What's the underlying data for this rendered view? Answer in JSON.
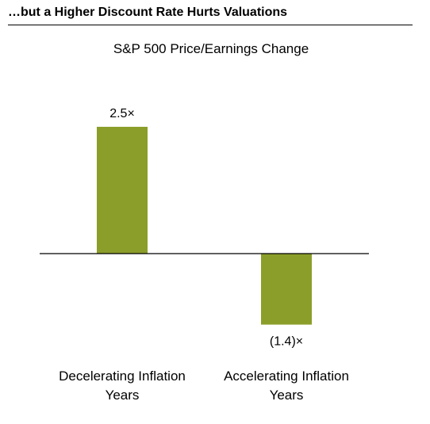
{
  "header": {
    "title": "…but a Higher Discount Rate Hurts Valuations"
  },
  "colors": {
    "bar": "#8C9E2A",
    "baseline": "#000000",
    "text": "#000000"
  },
  "chart_data": {
    "type": "bar",
    "title": "S&P 500 Price/Earnings Change",
    "categories": [
      [
        "Decelerating Inflation",
        "Years"
      ],
      [
        "Accelerating Inflation",
        "Years"
      ]
    ],
    "values": [
      2.5,
      -1.4
    ],
    "data_labels": [
      "2.5×",
      "(1.4)×"
    ],
    "xlabel": "",
    "ylabel": "",
    "ylim": [
      -1.4,
      2.5
    ],
    "grid": false,
    "legend": "none"
  }
}
